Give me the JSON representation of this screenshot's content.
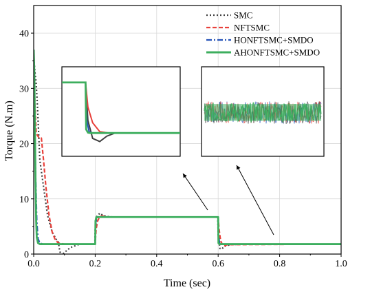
{
  "chart_data": {
    "type": "line",
    "title": "",
    "xlabel": "Time (sec)",
    "ylabel": "Torque (N.m)",
    "xlim": [
      0,
      1.0
    ],
    "ylim": [
      0,
      45
    ],
    "xticks": [
      0.0,
      0.2,
      0.4,
      0.6,
      0.8,
      1.0
    ],
    "xtick_labels": [
      "0.0",
      "0.2",
      "0.4",
      "0.6",
      "0.8",
      "1.0"
    ],
    "yticks": [
      0,
      10,
      20,
      30,
      40
    ],
    "ytick_labels": [
      "0",
      "10",
      "20",
      "30",
      "40"
    ],
    "grid": true,
    "legend_position": "top-right",
    "series": [
      {
        "name": "SMC",
        "color": "#404040",
        "dash": "2,3",
        "x": [
          0.0,
          0.004,
          0.008,
          0.012,
          0.016,
          0.02,
          0.03,
          0.045,
          0.06,
          0.075,
          0.08,
          0.085,
          0.09,
          0.1,
          0.12,
          0.15,
          0.199,
          0.2,
          0.205,
          0.215,
          0.225,
          0.24,
          0.26,
          0.3,
          0.5,
          0.599,
          0.6,
          0.606,
          0.612,
          0.62,
          0.64,
          0.7,
          1.0
        ],
        "y": [
          36,
          33,
          31,
          27,
          22,
          17,
          13,
          7,
          4,
          2.5,
          2.2,
          0.5,
          -0.3,
          0.3,
          1.2,
          1.8,
          1.8,
          4.5,
          6.8,
          7.4,
          7.0,
          6.8,
          6.7,
          6.7,
          6.7,
          6.7,
          3.5,
          1.0,
          0.9,
          1.4,
          1.7,
          1.8,
          1.8
        ]
      },
      {
        "name": "NFTSMC",
        "color": "#e8403a",
        "dash": "6,3",
        "x": [
          0.0,
          0.004,
          0.008,
          0.012,
          0.018,
          0.025,
          0.032,
          0.04,
          0.05,
          0.06,
          0.07,
          0.08,
          0.1,
          0.2,
          0.203,
          0.208,
          0.215,
          0.225,
          0.24,
          0.6,
          0.603,
          0.608,
          0.615,
          0.62,
          0.63,
          1.0
        ],
        "y": [
          34,
          27,
          22,
          21.5,
          21,
          21,
          17,
          12,
          7,
          4,
          2.6,
          2.0,
          1.8,
          1.8,
          4.5,
          6.0,
          6.8,
          6.9,
          6.7,
          6.7,
          4.5,
          2.4,
          1.6,
          1.5,
          1.7,
          1.8
        ]
      },
      {
        "name": "HONFTSMC+SMDO",
        "color": "#2452b8",
        "dash": "8,3,2,3",
        "x": [
          0.0,
          0.003,
          0.006,
          0.01,
          0.014,
          0.02,
          0.03,
          0.2,
          0.201,
          0.205,
          0.21,
          0.6,
          0.601,
          0.605,
          0.61,
          1.0
        ],
        "y": [
          37,
          26,
          15,
          6,
          2.8,
          2.0,
          1.8,
          1.8,
          5.0,
          6.6,
          6.7,
          6.7,
          3.5,
          1.8,
          1.8,
          1.8
        ]
      },
      {
        "name": "AHONFTSMC+SMDO",
        "color": "#3dae5e",
        "dash": "",
        "x": [
          0.0,
          0.002,
          0.004,
          0.006,
          0.008,
          0.01,
          0.014,
          0.02,
          0.03,
          0.2,
          0.201,
          0.204,
          0.21,
          0.6,
          0.601,
          0.604,
          0.61,
          1.0
        ],
        "y": [
          37,
          33,
          23,
          13,
          6,
          3,
          2.0,
          1.8,
          1.8,
          1.8,
          6.0,
          6.7,
          6.7,
          6.7,
          2.0,
          1.8,
          1.8,
          1.8
        ]
      }
    ],
    "insets": [
      {
        "description": "zoom of step near t=0.6",
        "series": [
          {
            "name": "SMC",
            "x": [
              0,
              0.2,
              0.22,
              0.26,
              0.32,
              0.38,
              0.45,
              1.0
            ],
            "y": [
              32.5,
              32.5,
              24,
              20,
              19.3,
              20.5,
              21.2,
              21.2
            ]
          },
          {
            "name": "NFTSMC",
            "x": [
              0,
              0.2,
              0.22,
              0.26,
              0.32,
              0.4,
              1.0
            ],
            "y": [
              32.5,
              32.5,
              27,
              23.5,
              21.5,
              21.2,
              21.2
            ]
          },
          {
            "name": "HONFTSMC+SMDO",
            "x": [
              0,
              0.2,
              0.21,
              0.23,
              0.26,
              1.0
            ],
            "y": [
              32.5,
              32.5,
              24,
              21.5,
              21.2,
              21.2
            ]
          },
          {
            "name": "AHONFTSMC+SMDO",
            "x": [
              0,
              0.2,
              0.205,
              0.22,
              0.24,
              1.0
            ],
            "y": [
              32.5,
              32.5,
              22,
              21.3,
              21.2,
              21.2
            ]
          }
        ]
      },
      {
        "description": "zoom of chattering band near t=0.8",
        "band": {
          "center": 25.8,
          "half_width": 2.5
        }
      }
    ]
  }
}
